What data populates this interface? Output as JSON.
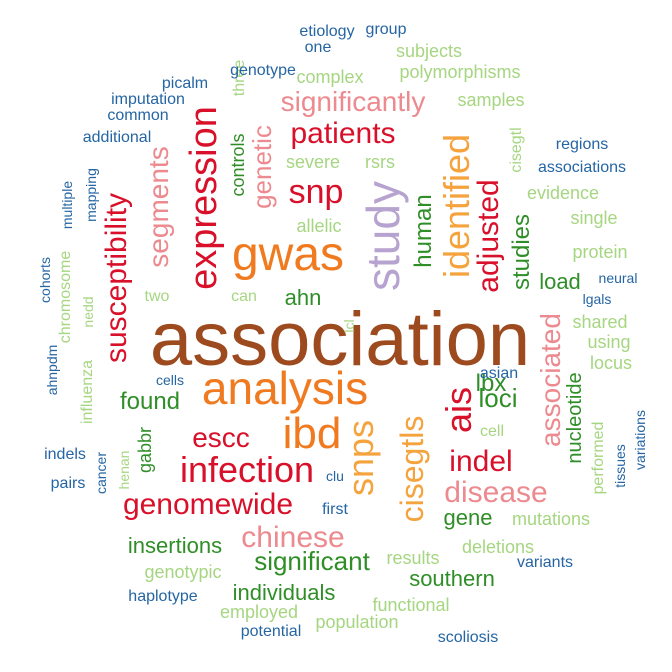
{
  "colors": {
    "brown": "#9c4a1e",
    "orange": "#f07a1f",
    "lavender": "#b7a3cf",
    "red": "#d8102a",
    "pink": "#ec8a8f",
    "yellow_orange": "#f5a33d",
    "dark_green": "#2f8e27",
    "light_green": "#a6d681",
    "blue": "#2565a3"
  },
  "words": [
    "association",
    "analysis",
    "gwas",
    "study",
    "ibd",
    "infection",
    "genomewide",
    "expression",
    "snps",
    "identified",
    "cisegtls",
    "ais",
    "snp",
    "patients",
    "susceptibility",
    "significantly",
    "adjusted",
    "disease",
    "chinese",
    "escc",
    "indel",
    "segments",
    "associated",
    "genetic",
    "significant",
    "insertions",
    "ahn",
    "found",
    "loci",
    "lbx",
    "human",
    "studies",
    "load",
    "gene",
    "individuals",
    "southern",
    "nucleotide",
    "controls",
    "gabbr",
    "complex",
    "polymorphisms",
    "subjects",
    "samples",
    "severe",
    "rsrs",
    "cisegtl",
    "evidence",
    "single",
    "protein",
    "allelic",
    "can",
    "two",
    "shared",
    "using",
    "locus",
    "cell",
    "lcl",
    "henan",
    "first",
    "clu",
    "performed",
    "mutations",
    "deletions",
    "results",
    "functional",
    "population",
    "employed",
    "genotypic",
    "three",
    "chromosome",
    "influenza",
    "nedd",
    "one",
    "etiology",
    "group",
    "genotype",
    "picalm",
    "imputation",
    "common",
    "additional",
    "regions",
    "associations",
    "mapping",
    "multiple",
    "cohorts",
    "ahnpdm",
    "asian",
    "cells",
    "neural",
    "lgals",
    "indels",
    "cancer",
    "pairs",
    "tissues",
    "variations",
    "variants",
    "haplotype",
    "potential",
    "scoliosis"
  ]
}
